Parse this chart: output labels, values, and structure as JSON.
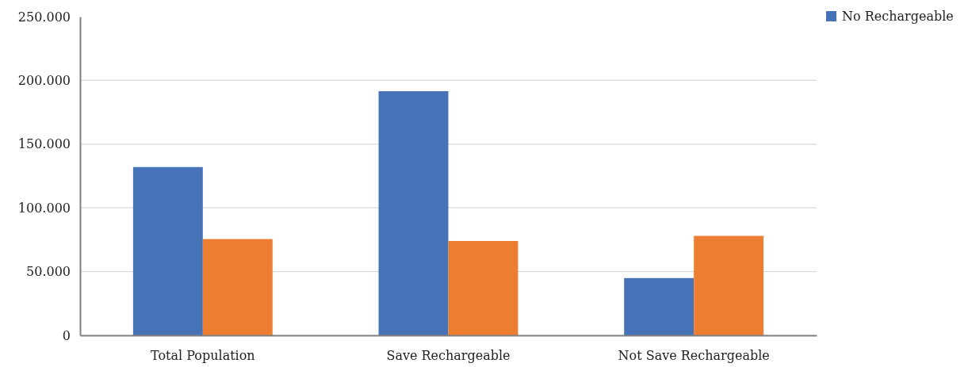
{
  "chart_data": {
    "type": "bar",
    "categories": [
      "Total Population",
      "Save Rechargeable",
      "Not Save Rechargeable"
    ],
    "series": [
      {
        "name": "No Rechargeable",
        "color": "#4672b8",
        "values": [
          132000,
          191500,
          44900
        ]
      },
      {
        "color": "#ed7d31",
        "values": [
          75500,
          74000,
          78000
        ]
      }
    ],
    "ylim": [
      0,
      250000
    ],
    "yticks": [
      {
        "value": 0,
        "label": "0"
      },
      {
        "value": 50000,
        "label": "50.000"
      },
      {
        "value": 100000,
        "label": "100.000"
      },
      {
        "value": 150000,
        "label": "150.000"
      },
      {
        "value": 200000,
        "label": "200.000"
      },
      {
        "value": 250000,
        "label": "250.000"
      }
    ],
    "grid": "y",
    "legend": "top right"
  }
}
